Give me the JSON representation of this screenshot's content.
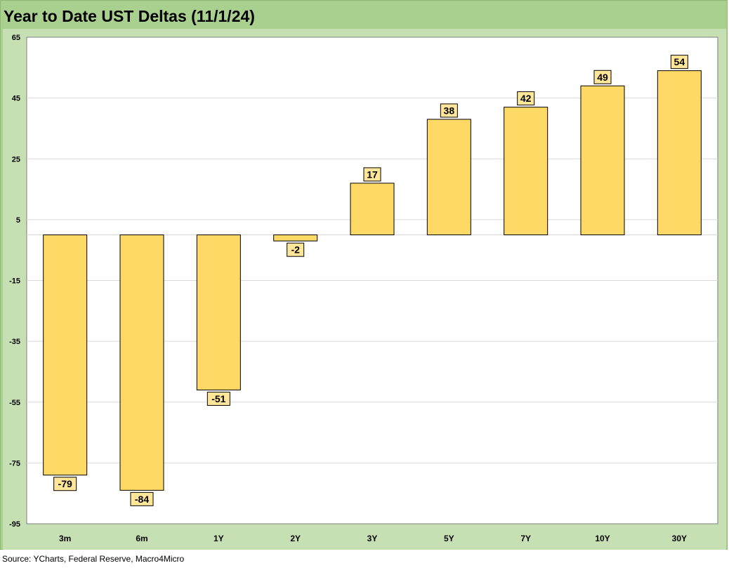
{
  "header": {
    "title": "Year to Date UST Deltas (11/1/24)"
  },
  "footer": {
    "source": "Source: YCharts, Federal Reserve, Macro4Micro"
  },
  "colors": {
    "frame": "#a9d08e",
    "panel": "#c6e0b4",
    "plot_bg": "#ffffff",
    "bar_fill": "#ffd966",
    "bar_stroke": "#000000",
    "label_fill": "#ffe699",
    "grid": "#d9d9d9"
  },
  "chart_data": {
    "type": "bar",
    "title": "Year to Date UST Deltas (11/1/24)",
    "xlabel": "",
    "ylabel": "",
    "categories": [
      "3m",
      "6m",
      "1Y",
      "2Y",
      "3Y",
      "5Y",
      "7Y",
      "10Y",
      "30Y"
    ],
    "values": [
      -79,
      -84,
      -51,
      -2,
      17,
      38,
      42,
      49,
      54
    ],
    "data_labels": [
      "-79",
      "-84",
      "-51",
      "-2",
      "17",
      "38",
      "42",
      "49",
      "54"
    ],
    "ylim": [
      -95,
      65
    ],
    "yticks": [
      65,
      45,
      25,
      5,
      -15,
      -35,
      -55,
      -75,
      -95
    ],
    "grid": true,
    "legend": "none"
  }
}
